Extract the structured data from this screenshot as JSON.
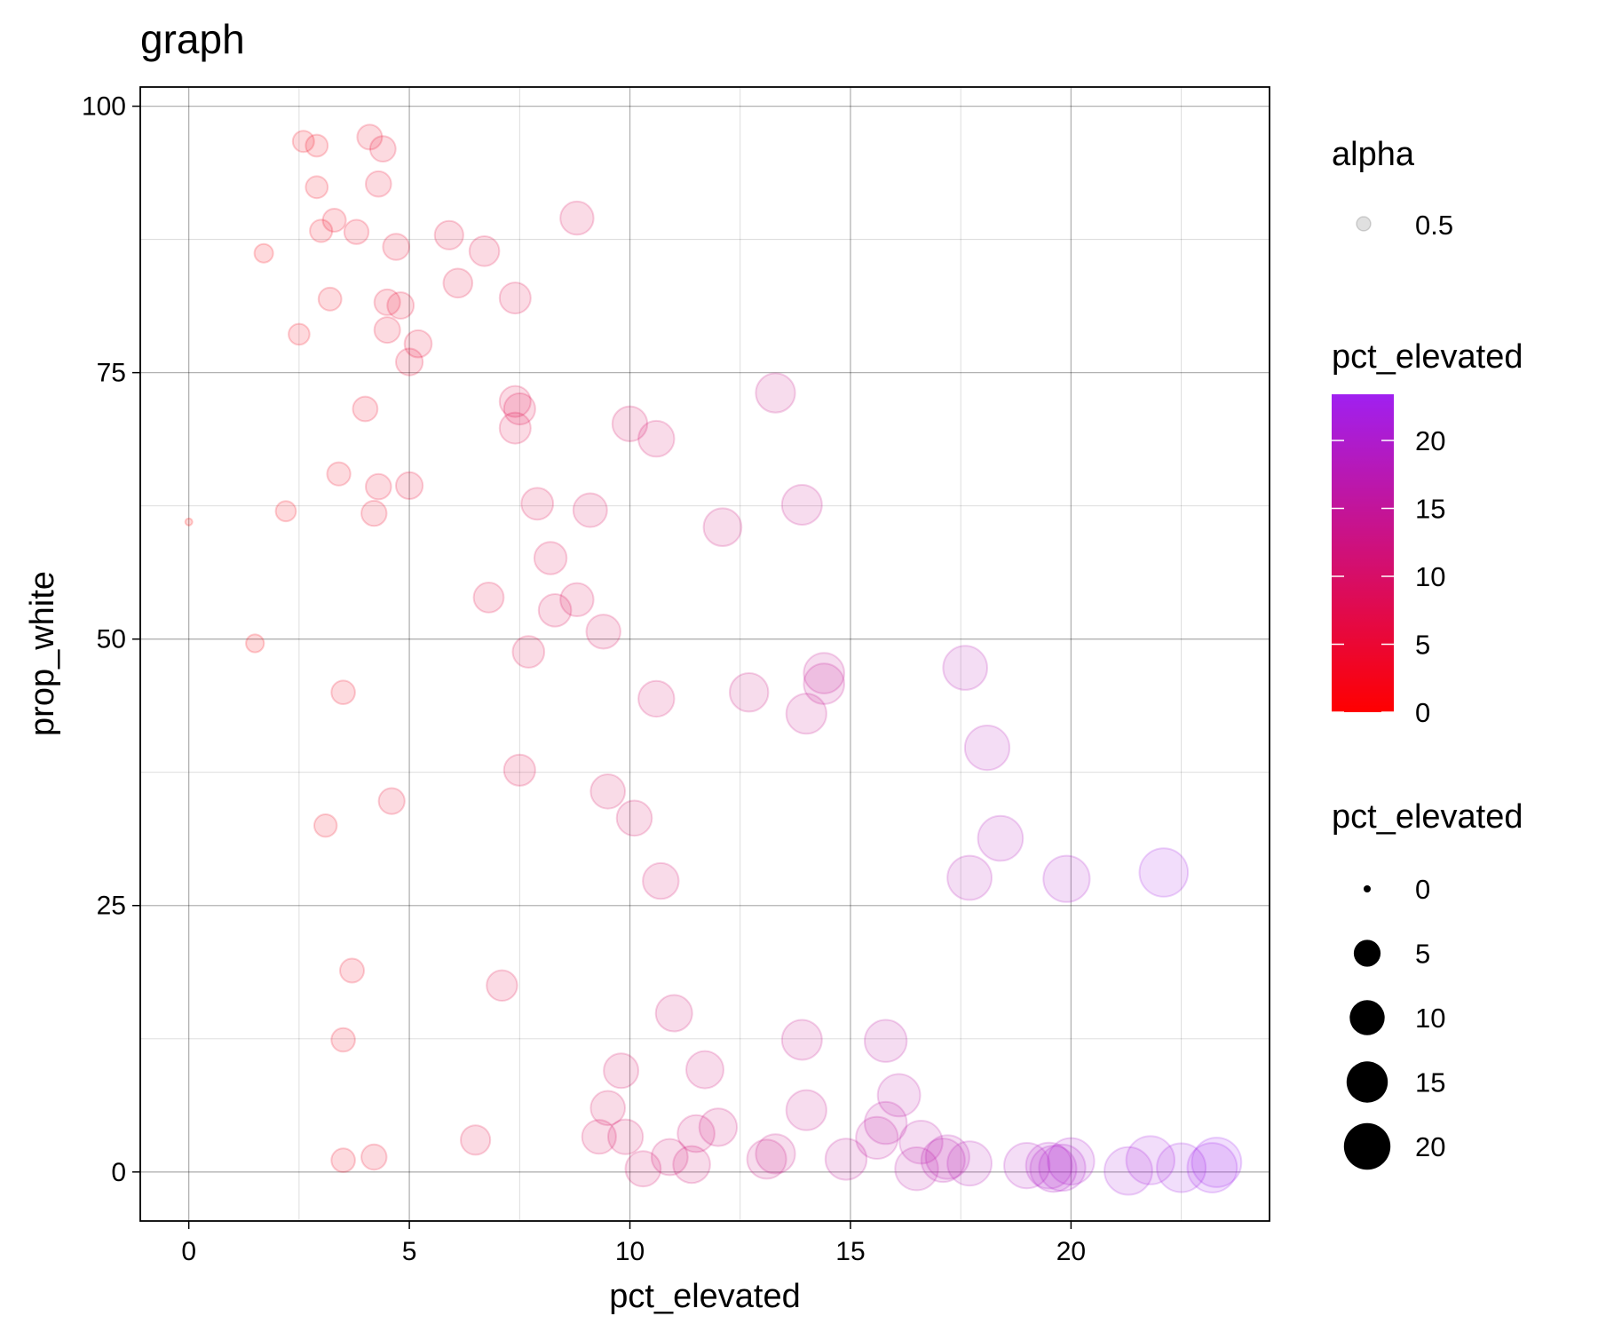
{
  "chart_data": {
    "type": "scatter",
    "title": "graph",
    "xlabel": "pct_elevated",
    "ylabel": "prop_white",
    "xlim": [
      -1.1,
      24.5
    ],
    "ylim": [
      -4.6,
      101.8
    ],
    "x_ticks": [
      0,
      5,
      10,
      15,
      20
    ],
    "y_ticks": [
      0,
      25,
      50,
      75,
      100
    ],
    "grid": true,
    "legend_position": "right",
    "color_low": "#ff0000",
    "color_high": "#a020f0",
    "point_opacity": 0.15,
    "points": [
      [
        0,
        61
      ],
      [
        1.5,
        49.6
      ],
      [
        1.7,
        86.2
      ],
      [
        2.2,
        62
      ],
      [
        2.5,
        78.6
      ],
      [
        2.6,
        96.7
      ],
      [
        2.9,
        96.3
      ],
      [
        2.9,
        92.4
      ],
      [
        3.0,
        88.3
      ],
      [
        3.1,
        32.5
      ],
      [
        3.2,
        81.9
      ],
      [
        3.3,
        89.3
      ],
      [
        3.4,
        65.5
      ],
      [
        3.5,
        1.1
      ],
      [
        3.5,
        45
      ],
      [
        3.5,
        12.4
      ],
      [
        3.7,
        18.9
      ],
      [
        3.8,
        88.2
      ],
      [
        4.0,
        71.6
      ],
      [
        4.1,
        97.1
      ],
      [
        4.2,
        61.8
      ],
      [
        4.2,
        1.4
      ],
      [
        4.3,
        64.3
      ],
      [
        4.3,
        92.7
      ],
      [
        4.4,
        96
      ],
      [
        4.5,
        81.6
      ],
      [
        4.5,
        79
      ],
      [
        4.6,
        34.8
      ],
      [
        4.7,
        86.8
      ],
      [
        4.8,
        81.3
      ],
      [
        5.0,
        76
      ],
      [
        5.0,
        64.4
      ],
      [
        5.2,
        77.7
      ],
      [
        5.9,
        87.9
      ],
      [
        6.1,
        83.4
      ],
      [
        6.5,
        3
      ],
      [
        6.7,
        86.4
      ],
      [
        6.8,
        53.9
      ],
      [
        7.1,
        17.5
      ],
      [
        7.4,
        82
      ],
      [
        7.4,
        72.3
      ],
      [
        7.4,
        69.8
      ],
      [
        7.5,
        71.6
      ],
      [
        7.5,
        37.7
      ],
      [
        7.7,
        48.8
      ],
      [
        7.9,
        62.7
      ],
      [
        8.2,
        57.6
      ],
      [
        8.3,
        52.7
      ],
      [
        8.8,
        89.5
      ],
      [
        8.8,
        53.7
      ],
      [
        9.1,
        62.1
      ],
      [
        9.3,
        3.3
      ],
      [
        9.4,
        50.7
      ],
      [
        9.5,
        35.7
      ],
      [
        9.5,
        6
      ],
      [
        9.8,
        9.5
      ],
      [
        9.9,
        3.3
      ],
      [
        10.0,
        70.2
      ],
      [
        10.1,
        33.2
      ],
      [
        10.3,
        0.3
      ],
      [
        10.6,
        44.4
      ],
      [
        10.6,
        68.8
      ],
      [
        10.7,
        27.3
      ],
      [
        10.9,
        1.4
      ],
      [
        11.0,
        14.9
      ],
      [
        11.4,
        0.7
      ],
      [
        11.5,
        3.6
      ],
      [
        11.7,
        9.6
      ],
      [
        12.0,
        4.2
      ],
      [
        12.1,
        60.5
      ],
      [
        12.7,
        45
      ],
      [
        13.1,
        1.2
      ],
      [
        13.3,
        73.1
      ],
      [
        13.3,
        1.7
      ],
      [
        13.9,
        62.6
      ],
      [
        13.9,
        12.4
      ],
      [
        14.0,
        43
      ],
      [
        14.0,
        5.8
      ],
      [
        14.4,
        45.8
      ],
      [
        14.4,
        46.8
      ],
      [
        14.9,
        1.2
      ],
      [
        15.6,
        3.2
      ],
      [
        15.8,
        12.3
      ],
      [
        15.8,
        4.6
      ],
      [
        16.1,
        7.2
      ],
      [
        16.5,
        0.3
      ],
      [
        16.6,
        2.8
      ],
      [
        17.1,
        1.1
      ],
      [
        17.2,
        1.4
      ],
      [
        17.6,
        47.3
      ],
      [
        17.7,
        27.6
      ],
      [
        17.7,
        0.8
      ],
      [
        18.1,
        39.8
      ],
      [
        18.4,
        31.3
      ],
      [
        19.0,
        0.6
      ],
      [
        19.5,
        0.6
      ],
      [
        19.6,
        0.3
      ],
      [
        19.8,
        0.4
      ],
      [
        19.9,
        27.5
      ],
      [
        20.0,
        1
      ],
      [
        21.3,
        0.1
      ],
      [
        21.8,
        1.1
      ],
      [
        22.1,
        28.1
      ],
      [
        22.5,
        0.4
      ],
      [
        23.2,
        0.4
      ],
      [
        23.3,
        0.9
      ]
    ],
    "legends": {
      "alpha": {
        "title": "alpha",
        "value_label": "0.5"
      },
      "colorbar": {
        "title": "pct_elevated",
        "min": 0,
        "max": 23.4,
        "ticks": [
          0,
          5,
          10,
          15,
          20
        ]
      },
      "size": {
        "title": "pct_elevated",
        "values": [
          0,
          5,
          10,
          15,
          20
        ]
      }
    }
  }
}
